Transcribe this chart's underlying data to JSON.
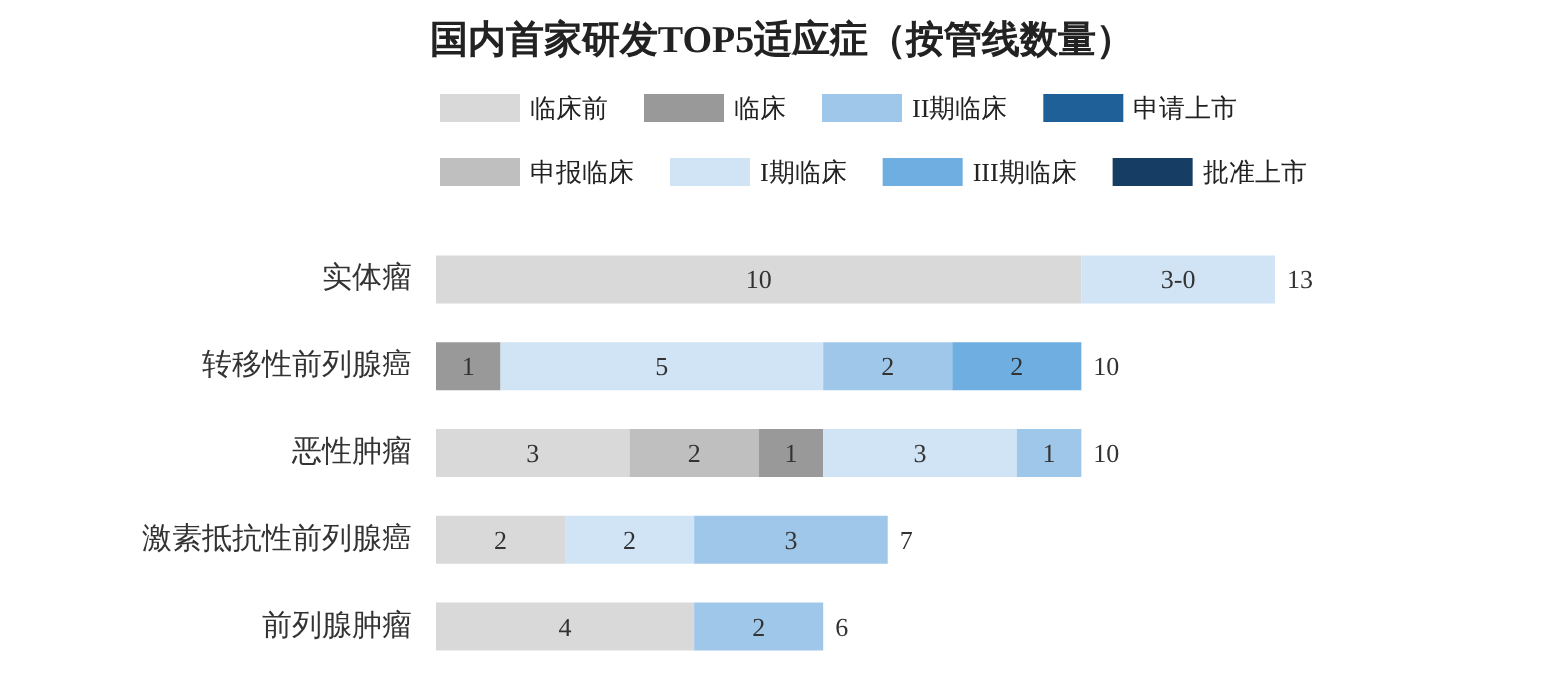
{
  "chart_data": {
    "type": "bar",
    "orientation": "horizontal",
    "stacked": true,
    "title": "国内首家研发TOP5适应症（按管线数量）",
    "legend": "top",
    "categories": [
      "实体瘤",
      "转移性前列腺癌",
      "恶性肿瘤",
      "激素抵抗性前列腺癌",
      "前列腺肿瘤"
    ],
    "series": [
      {
        "name": "临床前",
        "color": "#d9d9d9",
        "values": [
          10,
          null,
          3,
          2,
          4
        ],
        "value_labels": [
          "10",
          null,
          "3",
          "2",
          "4"
        ]
      },
      {
        "name": "申报临床",
        "color": "#bfbfbf",
        "values": [
          null,
          null,
          2,
          null,
          null
        ],
        "value_labels": [
          null,
          null,
          "2",
          null,
          null
        ]
      },
      {
        "name": "临床",
        "color": "#999999",
        "values": [
          null,
          1,
          1,
          null,
          null
        ],
        "value_labels": [
          null,
          "1",
          "1",
          null,
          null
        ]
      },
      {
        "name": "I期临床",
        "color": "#d0e4f6",
        "values": [
          3,
          5,
          3,
          2,
          null
        ],
        "value_labels": [
          "3-0",
          "5",
          "3",
          "2",
          null
        ]
      },
      {
        "name": "II期临床",
        "color": "#9fc7ea",
        "values": [
          null,
          2,
          1,
          3,
          2
        ],
        "value_labels": [
          null,
          "2",
          "1",
          "3",
          "2"
        ]
      },
      {
        "name": "III期临床",
        "color": "#6eaee0",
        "values": [
          null,
          2,
          null,
          null,
          null
        ],
        "value_labels": [
          null,
          "2",
          null,
          null,
          null
        ]
      },
      {
        "name": "申请上市",
        "color": "#1f6099",
        "values": [
          null,
          null,
          null,
          null,
          null
        ]
      },
      {
        "name": "批准上市",
        "color": "#163d63",
        "values": [
          null,
          null,
          null,
          null,
          null
        ]
      }
    ],
    "totals": [
      "13",
      "10",
      "10",
      "7",
      "6"
    ]
  }
}
